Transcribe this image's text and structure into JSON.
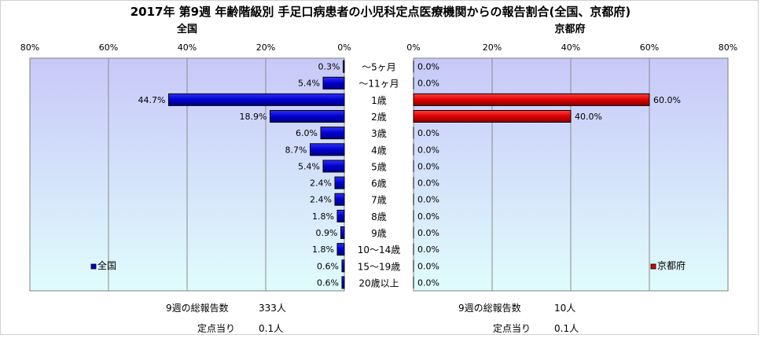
{
  "title": "2017年 第9週 年齢階級別 手足口病患者の小児科定点医療機関からの報告割合(全国、京都府)",
  "charts": [
    {
      "subtitle": "全国",
      "legend": "全国",
      "color": "#0000cc",
      "direction": "left",
      "report_total_label": "9週の総報告数",
      "report_total_value": "333人",
      "per_site_label": "定点当り",
      "per_site_value": "0.1人"
    },
    {
      "subtitle": "京都府",
      "legend": "京都府",
      "color": "#dd0000",
      "direction": "right",
      "report_total_label": "9週の総報告数",
      "report_total_value": "10人",
      "per_site_label": "定点当り",
      "per_site_value": "0.1人"
    }
  ],
  "colors": {
    "plot_gradient_top": "#c8c8f8",
    "plot_gradient_bottom": "#e0fcfc"
  },
  "chart_data": [
    {
      "type": "bar",
      "orientation": "horizontal",
      "title": "全国",
      "categories": [
        "～5ヶ月",
        "～11ヶ月",
        "1歳",
        "2歳",
        "3歳",
        "4歳",
        "5歳",
        "6歳",
        "7歳",
        "8歳",
        "9歳",
        "10～14歳",
        "15～19歳",
        "20歳以上"
      ],
      "series": [
        {
          "name": "全国",
          "values": [
            0.3,
            5.4,
            44.7,
            18.9,
            6.0,
            8.7,
            5.4,
            2.4,
            2.4,
            1.8,
            0.9,
            1.8,
            0.6,
            0.6
          ]
        }
      ],
      "value_labels": [
        "0.3%",
        "5.4%",
        "44.7%",
        "18.9%",
        "6.0%",
        "8.7%",
        "5.4%",
        "2.4%",
        "2.4%",
        "1.8%",
        "0.9%",
        "1.8%",
        "0.6%",
        "0.6%"
      ],
      "xlim": [
        0,
        80
      ],
      "xticks": [
        "80%",
        "60%",
        "40%",
        "20%",
        "0%"
      ],
      "reversed_axis": true,
      "grid": true,
      "legend_position": "bottom-left"
    },
    {
      "type": "bar",
      "orientation": "horizontal",
      "title": "京都府",
      "categories": [
        "～5ヶ月",
        "～11ヶ月",
        "1歳",
        "2歳",
        "3歳",
        "4歳",
        "5歳",
        "6歳",
        "7歳",
        "8歳",
        "9歳",
        "10～14歳",
        "15～19歳",
        "20歳以上"
      ],
      "series": [
        {
          "name": "京都府",
          "values": [
            0.0,
            0.0,
            60.0,
            40.0,
            0.0,
            0.0,
            0.0,
            0.0,
            0.0,
            0.0,
            0.0,
            0.0,
            0.0,
            0.0
          ]
        }
      ],
      "value_labels": [
        "0.0%",
        "0.0%",
        "60.0%",
        "40.0%",
        "0.0%",
        "0.0%",
        "0.0%",
        "0.0%",
        "0.0%",
        "0.0%",
        "0.0%",
        "0.0%",
        "0.0%",
        "0.0%"
      ],
      "xlim": [
        0,
        80
      ],
      "xticks": [
        "0%",
        "20%",
        "40%",
        "60%",
        "80%"
      ],
      "reversed_axis": false,
      "grid": true,
      "legend_position": "bottom-right"
    }
  ]
}
